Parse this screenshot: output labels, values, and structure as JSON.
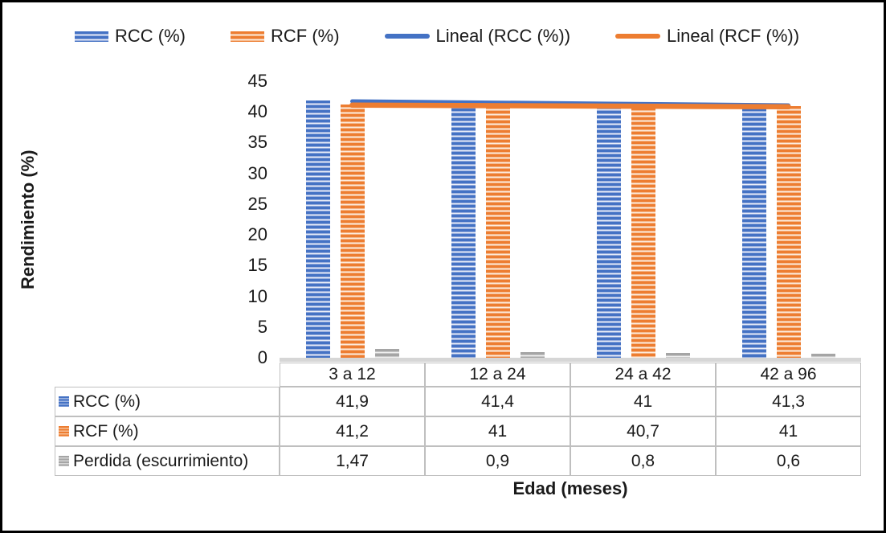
{
  "legend": {
    "items": [
      {
        "label": "RCC (%)",
        "swatch": "bar",
        "color": "#4472C4"
      },
      {
        "label": "RCF (%)",
        "swatch": "bar",
        "color": "#ED7D31"
      },
      {
        "label": "Lineal (RCC (%))",
        "swatch": "line",
        "color": "#4472C4"
      },
      {
        "label": "Lineal (RCF (%))",
        "swatch": "line",
        "color": "#ED7D31"
      }
    ]
  },
  "y_axis": {
    "title": "Rendimiento (%)",
    "tick_labels": [
      "45",
      "40",
      "35",
      "30",
      "25",
      "20",
      "15",
      "10",
      "5",
      "0"
    ]
  },
  "x_axis": {
    "title": "Edad (meses)"
  },
  "table": {
    "column_headers": [
      "3 a 12",
      "12 a 24",
      "24 a 42",
      "42 a 96"
    ],
    "rows": [
      {
        "label": "RCC (%)",
        "swatch": "blue",
        "values": [
          "41,9",
          "41,4",
          "41",
          "41,3"
        ]
      },
      {
        "label": "RCF (%)",
        "swatch": "orange",
        "values": [
          "41,2",
          "41",
          "40,7",
          "41"
        ]
      },
      {
        "label": "Perdida (escurrimiento)",
        "swatch": "gray",
        "values": [
          "1,47",
          "0,9",
          "0,8",
          "0,6"
        ]
      }
    ]
  },
  "chart_data": {
    "type": "bar",
    "categories": [
      "3 a 12",
      "12 a 24",
      "24 a 42",
      "42 a 96"
    ],
    "series": [
      {
        "name": "RCC (%)",
        "values": [
          41.9,
          41.4,
          41,
          41.3
        ],
        "color": "#4472C4",
        "pattern": "horizontal-stripes"
      },
      {
        "name": "RCF (%)",
        "values": [
          41.2,
          41,
          40.7,
          41
        ],
        "color": "#ED7D31",
        "pattern": "horizontal-stripes"
      },
      {
        "name": "Perdida (escurrimiento)",
        "values": [
          1.47,
          0.9,
          0.8,
          0.6
        ],
        "color": "#A5A5A5",
        "pattern": "horizontal-stripes"
      }
    ],
    "trendlines": [
      {
        "name": "Lineal (RCC (%))",
        "series": "RCC (%)",
        "color": "#4472C4",
        "width": 5
      },
      {
        "name": "Lineal (RCF (%))",
        "series": "RCF (%)",
        "color": "#ED7D31",
        "width": 6.5
      }
    ],
    "title": "",
    "xlabel": "Edad (meses)",
    "ylabel": "Rendimiento (%)",
    "ylim": [
      0,
      45
    ],
    "ytick_step": 5,
    "legend_position": "top",
    "grid": false,
    "data_table_shown": true
  }
}
